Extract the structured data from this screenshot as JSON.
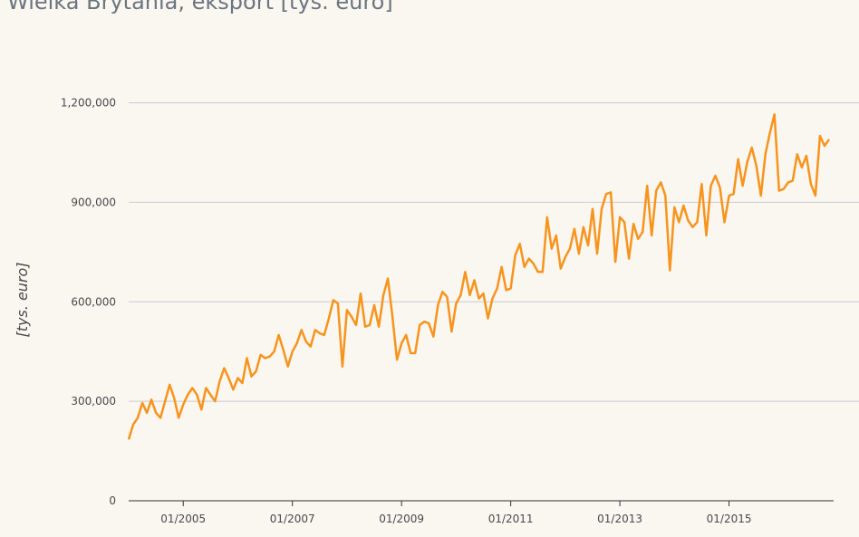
{
  "chart_data": {
    "type": "line",
    "title": "Wielka Brytania, eksport [tys. euro]",
    "xlabel": "",
    "ylabel": "[tys. euro]",
    "ylim": [
      0,
      1200000
    ],
    "y_ticks": [
      {
        "value": 0,
        "label": "0"
      },
      {
        "value": 300000,
        "label": "300,000"
      },
      {
        "value": 600000,
        "label": "600,000"
      },
      {
        "value": 900000,
        "label": "900,000"
      },
      {
        "value": 1200000,
        "label": "1,200,000"
      }
    ],
    "x_ticks": [
      "01/2005",
      "01/2007",
      "01/2009",
      "01/2011",
      "01/2013",
      "01/2015"
    ],
    "x_start": "01/2004",
    "x_end": "12/2016",
    "grid": true,
    "series_color": "#f7941d",
    "series": [
      {
        "values": [
          185000,
          230000,
          250000,
          295000,
          265000,
          305000,
          265000,
          250000,
          300000,
          350000,
          310000,
          250000,
          290000,
          320000,
          340000,
          320000,
          275000,
          340000,
          320000,
          300000,
          360000,
          400000,
          370000,
          335000,
          370000,
          355000,
          430000,
          375000,
          390000,
          440000,
          430000,
          435000,
          450000,
          500000,
          455000,
          405000,
          450000,
          475000,
          515000,
          480000,
          465000,
          515000,
          505000,
          500000,
          550000,
          605000,
          595000,
          405000,
          575000,
          555000,
          530000,
          625000,
          525000,
          530000,
          590000,
          525000,
          620000,
          670000,
          555000,
          425000,
          475000,
          500000,
          445000,
          445000,
          530000,
          540000,
          535000,
          495000,
          590000,
          630000,
          615000,
          510000,
          595000,
          620000,
          690000,
          620000,
          665000,
          610000,
          625000,
          550000,
          610000,
          640000,
          705000,
          635000,
          640000,
          740000,
          775000,
          705000,
          730000,
          715000,
          690000,
          690000,
          855000,
          760000,
          800000,
          700000,
          735000,
          760000,
          820000,
          745000,
          825000,
          770000,
          880000,
          745000,
          880000,
          925000,
          930000,
          720000,
          855000,
          840000,
          730000,
          835000,
          790000,
          810000,
          950000,
          800000,
          935000,
          960000,
          920000,
          695000,
          885000,
          840000,
          890000,
          845000,
          825000,
          840000,
          955000,
          800000,
          950000,
          980000,
          945000,
          840000,
          920000,
          925000,
          1030000,
          950000,
          1020000,
          1065000,
          1010000,
          920000,
          1045000,
          1110000,
          1165000,
          935000,
          940000,
          960000,
          965000,
          1045000,
          1005000,
          1040000,
          955000,
          920000,
          1100000,
          1070000,
          1090000
        ]
      }
    ]
  }
}
